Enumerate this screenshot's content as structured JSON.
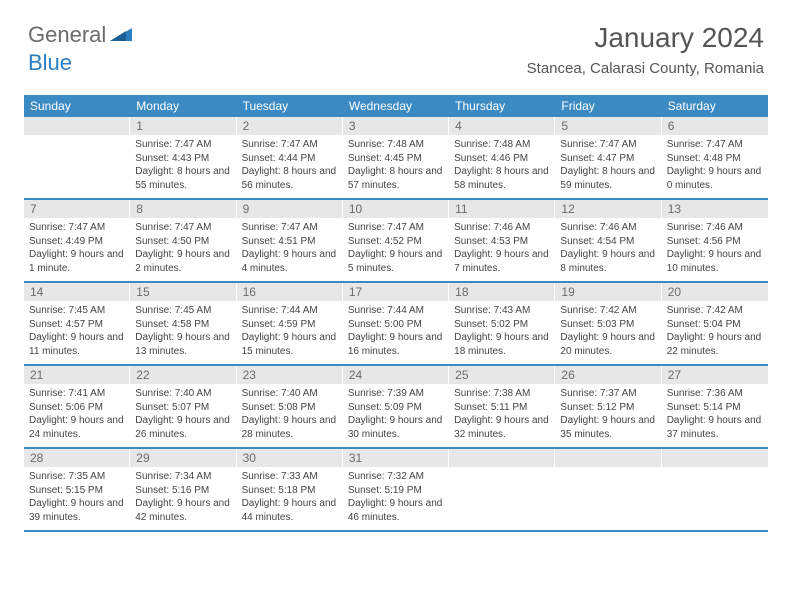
{
  "brand": {
    "part1": "General",
    "part2": "Blue"
  },
  "title": "January 2024",
  "location": "Stancea, Calarasi County, Romania",
  "colors": {
    "header_bg": "#3b8ac4",
    "daynum_bg": "#e7e7e7",
    "text": "#444444",
    "brand_gray": "#6b6b6b",
    "brand_blue": "#2b7ec2"
  },
  "day_labels": [
    "Sunday",
    "Monday",
    "Tuesday",
    "Wednesday",
    "Thursday",
    "Friday",
    "Saturday"
  ],
  "weeks": [
    [
      {
        "n": "",
        "sr": "",
        "ss": "",
        "dl": ""
      },
      {
        "n": "1",
        "sr": "Sunrise: 7:47 AM",
        "ss": "Sunset: 4:43 PM",
        "dl": "Daylight: 8 hours and 55 minutes."
      },
      {
        "n": "2",
        "sr": "Sunrise: 7:47 AM",
        "ss": "Sunset: 4:44 PM",
        "dl": "Daylight: 8 hours and 56 minutes."
      },
      {
        "n": "3",
        "sr": "Sunrise: 7:48 AM",
        "ss": "Sunset: 4:45 PM",
        "dl": "Daylight: 8 hours and 57 minutes."
      },
      {
        "n": "4",
        "sr": "Sunrise: 7:48 AM",
        "ss": "Sunset: 4:46 PM",
        "dl": "Daylight: 8 hours and 58 minutes."
      },
      {
        "n": "5",
        "sr": "Sunrise: 7:47 AM",
        "ss": "Sunset: 4:47 PM",
        "dl": "Daylight: 8 hours and 59 minutes."
      },
      {
        "n": "6",
        "sr": "Sunrise: 7:47 AM",
        "ss": "Sunset: 4:48 PM",
        "dl": "Daylight: 9 hours and 0 minutes."
      }
    ],
    [
      {
        "n": "7",
        "sr": "Sunrise: 7:47 AM",
        "ss": "Sunset: 4:49 PM",
        "dl": "Daylight: 9 hours and 1 minute."
      },
      {
        "n": "8",
        "sr": "Sunrise: 7:47 AM",
        "ss": "Sunset: 4:50 PM",
        "dl": "Daylight: 9 hours and 2 minutes."
      },
      {
        "n": "9",
        "sr": "Sunrise: 7:47 AM",
        "ss": "Sunset: 4:51 PM",
        "dl": "Daylight: 9 hours and 4 minutes."
      },
      {
        "n": "10",
        "sr": "Sunrise: 7:47 AM",
        "ss": "Sunset: 4:52 PM",
        "dl": "Daylight: 9 hours and 5 minutes."
      },
      {
        "n": "11",
        "sr": "Sunrise: 7:46 AM",
        "ss": "Sunset: 4:53 PM",
        "dl": "Daylight: 9 hours and 7 minutes."
      },
      {
        "n": "12",
        "sr": "Sunrise: 7:46 AM",
        "ss": "Sunset: 4:54 PM",
        "dl": "Daylight: 9 hours and 8 minutes."
      },
      {
        "n": "13",
        "sr": "Sunrise: 7:46 AM",
        "ss": "Sunset: 4:56 PM",
        "dl": "Daylight: 9 hours and 10 minutes."
      }
    ],
    [
      {
        "n": "14",
        "sr": "Sunrise: 7:45 AM",
        "ss": "Sunset: 4:57 PM",
        "dl": "Daylight: 9 hours and 11 minutes."
      },
      {
        "n": "15",
        "sr": "Sunrise: 7:45 AM",
        "ss": "Sunset: 4:58 PM",
        "dl": "Daylight: 9 hours and 13 minutes."
      },
      {
        "n": "16",
        "sr": "Sunrise: 7:44 AM",
        "ss": "Sunset: 4:59 PM",
        "dl": "Daylight: 9 hours and 15 minutes."
      },
      {
        "n": "17",
        "sr": "Sunrise: 7:44 AM",
        "ss": "Sunset: 5:00 PM",
        "dl": "Daylight: 9 hours and 16 minutes."
      },
      {
        "n": "18",
        "sr": "Sunrise: 7:43 AM",
        "ss": "Sunset: 5:02 PM",
        "dl": "Daylight: 9 hours and 18 minutes."
      },
      {
        "n": "19",
        "sr": "Sunrise: 7:42 AM",
        "ss": "Sunset: 5:03 PM",
        "dl": "Daylight: 9 hours and 20 minutes."
      },
      {
        "n": "20",
        "sr": "Sunrise: 7:42 AM",
        "ss": "Sunset: 5:04 PM",
        "dl": "Daylight: 9 hours and 22 minutes."
      }
    ],
    [
      {
        "n": "21",
        "sr": "Sunrise: 7:41 AM",
        "ss": "Sunset: 5:06 PM",
        "dl": "Daylight: 9 hours and 24 minutes."
      },
      {
        "n": "22",
        "sr": "Sunrise: 7:40 AM",
        "ss": "Sunset: 5:07 PM",
        "dl": "Daylight: 9 hours and 26 minutes."
      },
      {
        "n": "23",
        "sr": "Sunrise: 7:40 AM",
        "ss": "Sunset: 5:08 PM",
        "dl": "Daylight: 9 hours and 28 minutes."
      },
      {
        "n": "24",
        "sr": "Sunrise: 7:39 AM",
        "ss": "Sunset: 5:09 PM",
        "dl": "Daylight: 9 hours and 30 minutes."
      },
      {
        "n": "25",
        "sr": "Sunrise: 7:38 AM",
        "ss": "Sunset: 5:11 PM",
        "dl": "Daylight: 9 hours and 32 minutes."
      },
      {
        "n": "26",
        "sr": "Sunrise: 7:37 AM",
        "ss": "Sunset: 5:12 PM",
        "dl": "Daylight: 9 hours and 35 minutes."
      },
      {
        "n": "27",
        "sr": "Sunrise: 7:36 AM",
        "ss": "Sunset: 5:14 PM",
        "dl": "Daylight: 9 hours and 37 minutes."
      }
    ],
    [
      {
        "n": "28",
        "sr": "Sunrise: 7:35 AM",
        "ss": "Sunset: 5:15 PM",
        "dl": "Daylight: 9 hours and 39 minutes."
      },
      {
        "n": "29",
        "sr": "Sunrise: 7:34 AM",
        "ss": "Sunset: 5:16 PM",
        "dl": "Daylight: 9 hours and 42 minutes."
      },
      {
        "n": "30",
        "sr": "Sunrise: 7:33 AM",
        "ss": "Sunset: 5:18 PM",
        "dl": "Daylight: 9 hours and 44 minutes."
      },
      {
        "n": "31",
        "sr": "Sunrise: 7:32 AM",
        "ss": "Sunset: 5:19 PM",
        "dl": "Daylight: 9 hours and 46 minutes."
      },
      {
        "n": "",
        "sr": "",
        "ss": "",
        "dl": ""
      },
      {
        "n": "",
        "sr": "",
        "ss": "",
        "dl": ""
      },
      {
        "n": "",
        "sr": "",
        "ss": "",
        "dl": ""
      }
    ]
  ]
}
